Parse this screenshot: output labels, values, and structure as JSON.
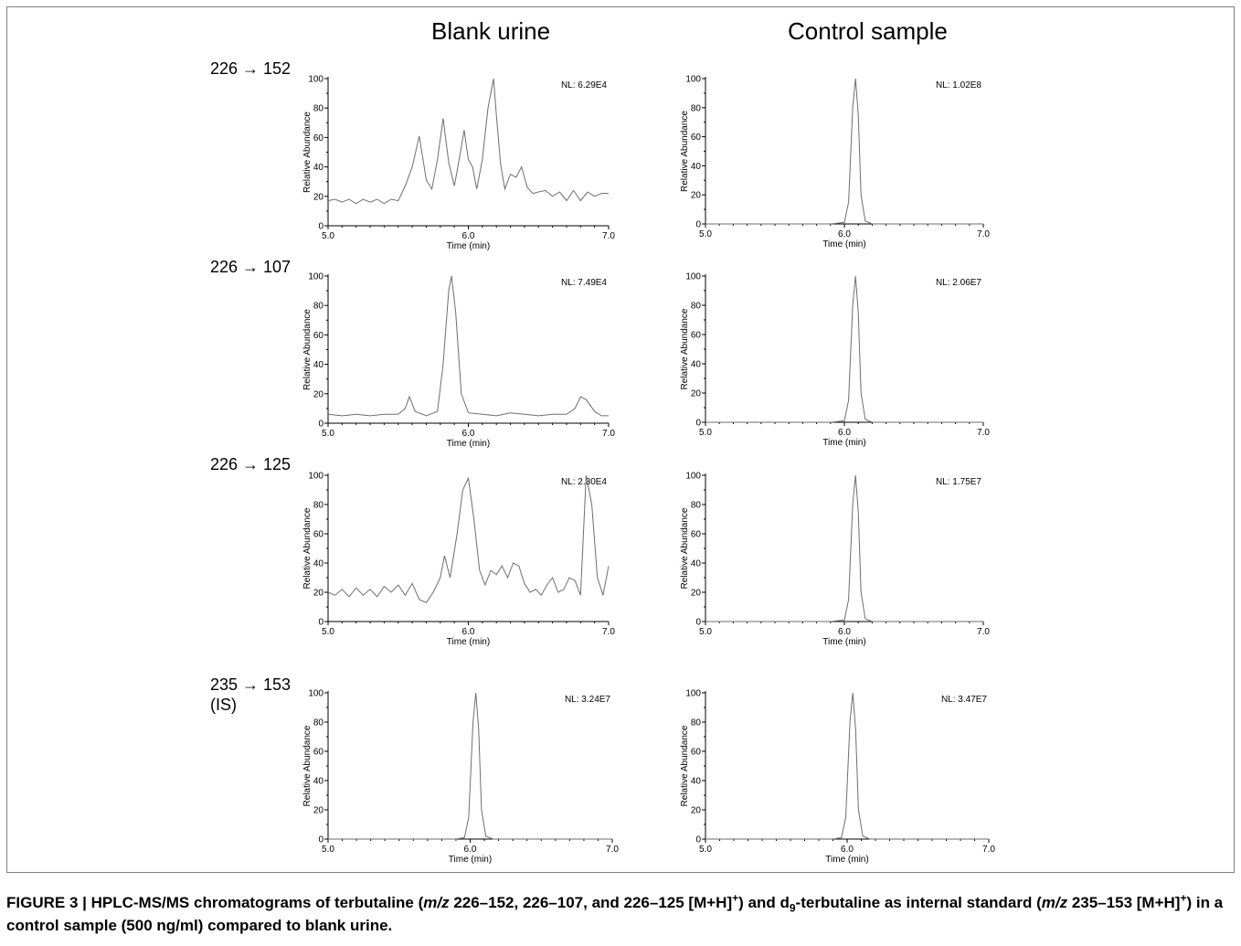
{
  "column_titles": [
    "Blank urine",
    "Control sample"
  ],
  "row_labels": [
    {
      "line1": "226 → 152",
      "line2": ""
    },
    {
      "line1": "226 → 107",
      "line2": ""
    },
    {
      "line1": "226 → 125",
      "line2": ""
    },
    {
      "line1": "235 → 153",
      "line2": "(IS)"
    }
  ],
  "caption": {
    "p1": "FIGURE 3 | HPLC-MS/MS chromatograms of terbutaline (",
    "mz1": "m/z",
    "p2": " 226–152, 226–107, and 226–125 [M+H]",
    "sup1": "+",
    "p3": ") and d",
    "sub1": "9",
    "p4": "-terbutaline as internal standard (",
    "mz2": "m/z",
    "p5": " 235–153 [M+H]",
    "sup2": "+",
    "p6": ") in a control sample (500 ng/ml) compared to blank urine."
  },
  "chart_data": [
    {
      "type": "line",
      "panel": "Blank urine 226 → 152",
      "xlabel": "Time (min)",
      "ylabel": "Relative Abundance",
      "xlim": [
        5.0,
        7.0
      ],
      "ylim": [
        0,
        100
      ],
      "xticks": [
        "5.0",
        "6.0",
        "7.0"
      ],
      "yticks": [
        "0",
        "20",
        "40",
        "60",
        "80",
        "100"
      ],
      "nl_label": "NL: 6.29E4",
      "series": [
        {
          "x": [
            5.0,
            5.05,
            5.1,
            5.15,
            5.2,
            5.25,
            5.3,
            5.35,
            5.4,
            5.45,
            5.5,
            5.55,
            5.6,
            5.65,
            5.7,
            5.74,
            5.78,
            5.82,
            5.86,
            5.9,
            5.94,
            5.97,
            6.0,
            6.03,
            6.06,
            6.1,
            6.14,
            6.18,
            6.2,
            6.23,
            6.26,
            6.3,
            6.34,
            6.38,
            6.42,
            6.46,
            6.5,
            6.55,
            6.6,
            6.65,
            6.7,
            6.75,
            6.8,
            6.85,
            6.9,
            6.95,
            7.0
          ],
          "y": [
            17,
            18,
            16,
            18,
            15,
            18,
            16,
            18,
            15,
            18,
            17,
            27,
            40,
            61,
            31,
            25,
            45,
            73,
            43,
            27,
            48,
            65,
            45,
            40,
            25,
            45,
            80,
            100,
            75,
            42,
            25,
            35,
            33,
            40,
            26,
            22,
            23,
            24,
            20,
            23,
            17,
            24,
            17,
            23,
            20,
            22,
            22
          ]
        }
      ]
    },
    {
      "type": "line",
      "panel": "Control sample 226 → 152",
      "xlabel": "Time (min)",
      "ylabel": "Relative Abundance",
      "xlim": [
        5.0,
        7.0
      ],
      "ylim": [
        0,
        100
      ],
      "xticks": [
        "5.0",
        "6.0",
        "7.0"
      ],
      "yticks": [
        "0",
        "20",
        "40",
        "60",
        "80",
        "100"
      ],
      "nl_label": "NL: 1.02E8",
      "series": [
        {
          "x": [
            5.0,
            5.9,
            6.0,
            6.03,
            6.06,
            6.08,
            6.1,
            6.12,
            6.15,
            6.2,
            7.0
          ],
          "y": [
            0,
            0,
            1,
            15,
            80,
            100,
            75,
            20,
            2,
            0,
            0
          ]
        }
      ]
    },
    {
      "type": "line",
      "panel": "Blank urine 226 → 107",
      "xlabel": "Time (min)",
      "ylabel": "Relative Abundance",
      "xlim": [
        5.0,
        7.0
      ],
      "ylim": [
        0,
        100
      ],
      "xticks": [
        "5.0",
        "6.0",
        "7.0"
      ],
      "yticks": [
        "0",
        "20",
        "40",
        "60",
        "80",
        "100"
      ],
      "nl_label": "NL: 7.49E4",
      "series": [
        {
          "x": [
            5.0,
            5.1,
            5.2,
            5.3,
            5.4,
            5.5,
            5.55,
            5.58,
            5.62,
            5.7,
            5.78,
            5.82,
            5.86,
            5.88,
            5.91,
            5.95,
            6.0,
            6.1,
            6.2,
            6.3,
            6.4,
            6.5,
            6.6,
            6.7,
            6.76,
            6.8,
            6.84,
            6.9,
            6.95,
            7.0
          ],
          "y": [
            6,
            5,
            6,
            5,
            6,
            6,
            10,
            18,
            8,
            5,
            8,
            40,
            90,
            100,
            75,
            20,
            7,
            6,
            5,
            7,
            6,
            5,
            6,
            6,
            10,
            18,
            16,
            8,
            5,
            5
          ]
        }
      ]
    },
    {
      "type": "line",
      "panel": "Control sample 226 → 107",
      "xlabel": "Time (min)",
      "ylabel": "Relative Abundance",
      "xlim": [
        5.0,
        7.0
      ],
      "ylim": [
        0,
        100
      ],
      "xticks": [
        "5.0",
        "6.0",
        "7.0"
      ],
      "yticks": [
        "0",
        "20",
        "40",
        "60",
        "80",
        "100"
      ],
      "nl_label": "NL: 2.06E7",
      "series": [
        {
          "x": [
            5.0,
            5.9,
            6.0,
            6.03,
            6.06,
            6.08,
            6.1,
            6.12,
            6.15,
            6.2,
            7.0
          ],
          "y": [
            0,
            0,
            1,
            15,
            80,
            100,
            75,
            20,
            2,
            0,
            0
          ]
        }
      ]
    },
    {
      "type": "line",
      "panel": "Blank urine 226 → 125",
      "xlabel": "Time (min)",
      "ylabel": "Relative Abundance",
      "xlim": [
        5.0,
        7.0
      ],
      "ylim": [
        0,
        100
      ],
      "xticks": [
        "5.0",
        "6.0",
        "7.0"
      ],
      "yticks": [
        "0",
        "20",
        "40",
        "60",
        "80",
        "100"
      ],
      "nl_label": "NL: 2.30E4",
      "series": [
        {
          "x": [
            5.0,
            5.05,
            5.1,
            5.15,
            5.2,
            5.25,
            5.3,
            5.35,
            5.4,
            5.45,
            5.5,
            5.55,
            5.6,
            5.65,
            5.7,
            5.75,
            5.8,
            5.83,
            5.87,
            5.92,
            5.96,
            6.0,
            6.04,
            6.08,
            6.12,
            6.16,
            6.2,
            6.24,
            6.28,
            6.32,
            6.36,
            6.4,
            6.44,
            6.48,
            6.52,
            6.56,
            6.6,
            6.64,
            6.68,
            6.72,
            6.76,
            6.8,
            6.84,
            6.88,
            6.92,
            6.96,
            7.0
          ],
          "y": [
            20,
            18,
            22,
            17,
            23,
            18,
            22,
            17,
            24,
            20,
            25,
            18,
            26,
            15,
            13,
            20,
            30,
            45,
            30,
            60,
            90,
            98,
            70,
            35,
            25,
            35,
            32,
            38,
            30,
            40,
            38,
            26,
            20,
            22,
            18,
            25,
            30,
            20,
            22,
            30,
            28,
            18,
            100,
            80,
            30,
            18,
            38
          ]
        }
      ]
    },
    {
      "type": "line",
      "panel": "Control sample 226 → 125",
      "xlabel": "Time (min)",
      "ylabel": "Relative Abundance",
      "xlim": [
        5.0,
        7.0
      ],
      "ylim": [
        0,
        100
      ],
      "xticks": [
        "5.0",
        "6.0",
        "7.0"
      ],
      "yticks": [
        "0",
        "20",
        "40",
        "60",
        "80",
        "100"
      ],
      "nl_label": "NL: 1.75E7",
      "series": [
        {
          "x": [
            5.0,
            5.9,
            6.0,
            6.03,
            6.06,
            6.08,
            6.1,
            6.12,
            6.15,
            6.2,
            7.0
          ],
          "y": [
            0,
            0,
            1,
            15,
            80,
            100,
            75,
            20,
            2,
            0,
            0
          ]
        }
      ]
    },
    {
      "type": "line",
      "panel": "Blank urine 235 → 153 (IS)",
      "xlabel": "Time (min)",
      "ylabel": "Relative Abundance",
      "xlim": [
        5.0,
        7.0
      ],
      "ylim": [
        0,
        100
      ],
      "xticks": [
        "5.0",
        "6.0",
        "7.0"
      ],
      "yticks": [
        "0",
        "20",
        "40",
        "60",
        "80",
        "100"
      ],
      "nl_label": "NL: 3.24E7",
      "series": [
        {
          "x": [
            5.0,
            5.9,
            5.96,
            5.99,
            6.02,
            6.04,
            6.06,
            6.08,
            6.11,
            6.16,
            7.0
          ],
          "y": [
            0,
            0,
            1,
            15,
            80,
            100,
            75,
            20,
            2,
            0,
            0
          ]
        }
      ]
    },
    {
      "type": "line",
      "panel": "Control sample 235 → 153 (IS)",
      "xlabel": "Time (min)",
      "ylabel": "Relative Abundance",
      "xlim": [
        5.0,
        7.0
      ],
      "ylim": [
        0,
        100
      ],
      "xticks": [
        "5.0",
        "6.0",
        "7.0"
      ],
      "yticks": [
        "0",
        "20",
        "40",
        "60",
        "80",
        "100"
      ],
      "nl_label": "NL: 3.47E7",
      "series": [
        {
          "x": [
            5.0,
            5.9,
            5.96,
            5.99,
            6.02,
            6.04,
            6.06,
            6.08,
            6.11,
            6.16,
            7.0
          ],
          "y": [
            0,
            0,
            1,
            15,
            80,
            100,
            75,
            20,
            2,
            0,
            0
          ]
        }
      ]
    }
  ]
}
